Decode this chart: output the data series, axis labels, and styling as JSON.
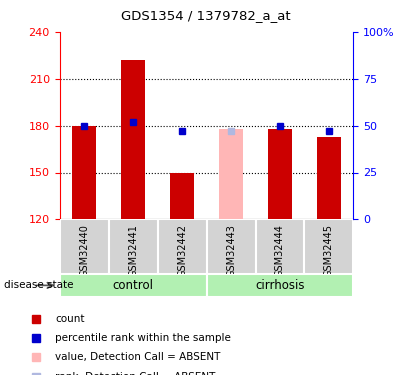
{
  "title": "GDS1354 / 1379782_a_at",
  "samples": [
    "GSM32440",
    "GSM32441",
    "GSM32442",
    "GSM32443",
    "GSM32444",
    "GSM32445"
  ],
  "groups": [
    "control",
    "control",
    "control",
    "cirrhosis",
    "cirrhosis",
    "cirrhosis"
  ],
  "count_values": [
    180,
    222,
    150,
    178,
    178,
    173
  ],
  "percentile_values": [
    50,
    52,
    47,
    47,
    50,
    47
  ],
  "absent": [
    false,
    false,
    false,
    true,
    false,
    false
  ],
  "ylim_left": [
    120,
    240
  ],
  "ylim_right": [
    0,
    100
  ],
  "yticks_left": [
    120,
    150,
    180,
    210,
    240
  ],
  "yticks_right": [
    0,
    25,
    50,
    75,
    100
  ],
  "ytick_labels_right": [
    "0",
    "25",
    "50",
    "75",
    "100%"
  ],
  "grid_lines": [
    150,
    180,
    210
  ],
  "bar_color_present": "#cc0000",
  "bar_color_absent": "#ffb6b6",
  "rank_color_present": "#0000cc",
  "rank_color_absent": "#b0b8e0",
  "group_bg": "#b2f0b2",
  "sample_bg": "#d3d3d3",
  "bar_width": 0.5,
  "rank_marker_size": 5,
  "figsize": [
    4.11,
    3.75
  ],
  "dpi": 100
}
